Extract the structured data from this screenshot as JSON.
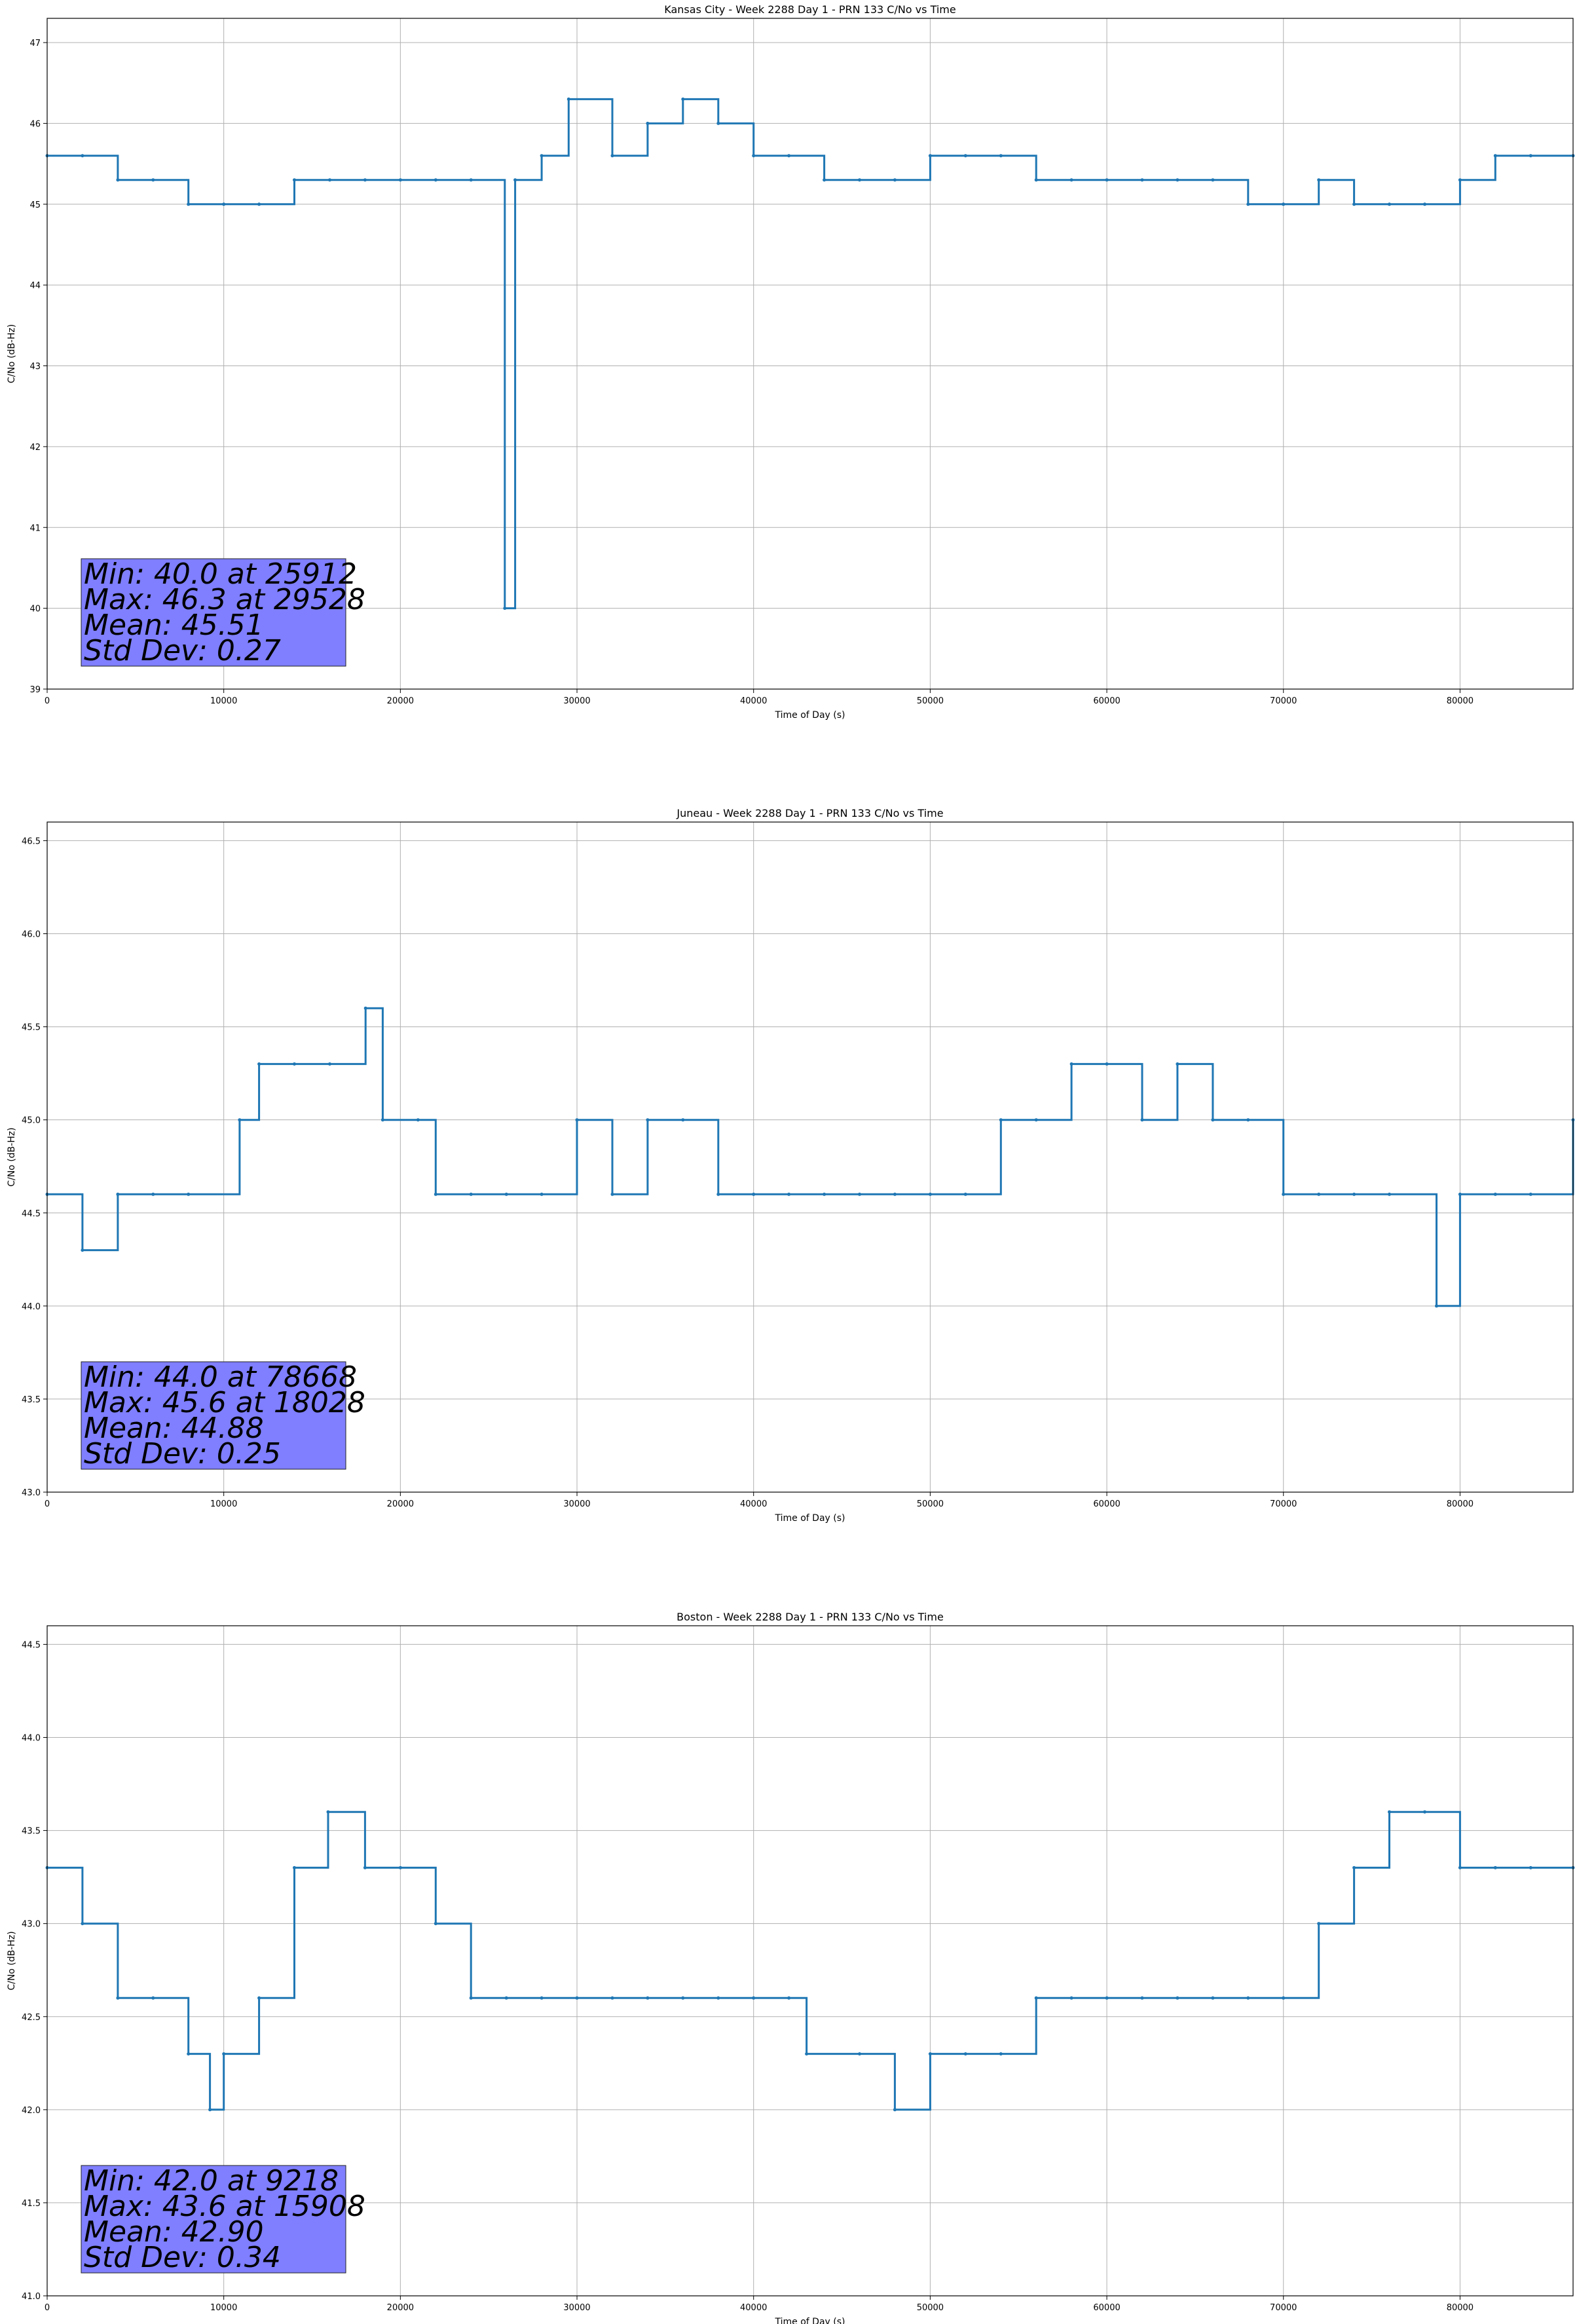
{
  "chart_data": [
    {
      "type": "line",
      "title": "Kansas City - Week 2288 Day 1 - PRN 133 C/No vs Time",
      "xlabel": "Time of Day (s)",
      "ylabel": "C/No (dB-Hz)",
      "xlim": [
        0,
        86400
      ],
      "ylim": [
        39,
        47.3
      ],
      "xticks": [
        0,
        10000,
        20000,
        30000,
        40000,
        50000,
        60000,
        70000,
        80000
      ],
      "yticks": [
        39,
        40,
        41,
        42,
        43,
        44,
        45,
        46,
        47
      ],
      "ytick_labels": [
        "39",
        "40",
        "41",
        "42",
        "43",
        "44",
        "45",
        "46",
        "47"
      ],
      "grid": true,
      "color": "#1f77b4",
      "series": [
        {
          "x": [
            0,
            2000,
            4000,
            6000,
            8000,
            10000,
            12000,
            14000,
            16000,
            18000,
            20000,
            22000,
            24000,
            25912,
            26500,
            28000,
            29528,
            32000,
            34000,
            36000,
            38000,
            40000,
            42000,
            44000,
            46000,
            48000,
            50000,
            52000,
            54000,
            56000,
            58000,
            60000,
            62000,
            64000,
            66000,
            68000,
            70000,
            72000,
            74000,
            76000,
            78000,
            80000,
            82000,
            84000,
            86400
          ],
          "y": [
            45.6,
            45.6,
            45.3,
            45.3,
            45.0,
            45.0,
            45.0,
            45.3,
            45.3,
            45.3,
            45.3,
            45.3,
            45.3,
            40.0,
            45.3,
            45.6,
            46.3,
            45.6,
            46.0,
            46.3,
            46.0,
            45.6,
            45.6,
            45.3,
            45.3,
            45.3,
            45.6,
            45.6,
            45.6,
            45.3,
            45.3,
            45.3,
            45.3,
            45.3,
            45.3,
            45.0,
            45.0,
            45.3,
            45.0,
            45.0,
            45.0,
            45.3,
            45.6,
            45.6,
            45.6
          ]
        }
      ],
      "stats": [
        "Min: 40.0 at 25912",
        "Max: 46.3 at 29528",
        "Mean: 45.51",
        "Std Dev: 0.27"
      ]
    },
    {
      "type": "line",
      "title": "Juneau - Week 2288 Day 1 - PRN 133 C/No vs Time",
      "xlabel": "Time of Day (s)",
      "ylabel": "C/No (dB-Hz)",
      "xlim": [
        0,
        86400
      ],
      "ylim": [
        43.0,
        46.6
      ],
      "xticks": [
        0,
        10000,
        20000,
        30000,
        40000,
        50000,
        60000,
        70000,
        80000
      ],
      "yticks": [
        43.0,
        43.5,
        44.0,
        44.5,
        45.0,
        45.5,
        46.0,
        46.5
      ],
      "ytick_labels": [
        "43.0",
        "43.5",
        "44.0",
        "44.5",
        "45.0",
        "45.5",
        "46.0",
        "46.5"
      ],
      "grid": true,
      "color": "#1f77b4",
      "series": [
        {
          "x": [
            0,
            2000,
            4000,
            6000,
            8000,
            10900,
            12000,
            14000,
            16000,
            18028,
            19000,
            21000,
            22000,
            24000,
            26000,
            28000,
            30000,
            32000,
            34000,
            36000,
            38000,
            40000,
            42000,
            44000,
            46000,
            48000,
            50000,
            52000,
            54000,
            56000,
            58000,
            60000,
            62000,
            64000,
            66000,
            68000,
            70000,
            72000,
            74000,
            76000,
            78668,
            80000,
            82000,
            84000,
            86400
          ],
          "y": [
            44.6,
            44.3,
            44.6,
            44.6,
            44.6,
            45.0,
            45.3,
            45.3,
            45.3,
            45.6,
            45.0,
            45.0,
            44.6,
            44.6,
            44.6,
            44.6,
            45.0,
            44.6,
            45.0,
            45.0,
            44.6,
            44.6,
            44.6,
            44.6,
            44.6,
            44.6,
            44.6,
            44.6,
            45.0,
            45.0,
            45.3,
            45.3,
            45.0,
            45.3,
            45.0,
            45.0,
            44.6,
            44.6,
            44.6,
            44.6,
            44.0,
            44.6,
            44.6,
            44.6,
            45.0
          ]
        }
      ],
      "stats": [
        "Min: 44.0 at 78668",
        "Max: 45.6 at 18028",
        "Mean: 44.88",
        "Std Dev: 0.25"
      ]
    },
    {
      "type": "line",
      "title": "Boston - Week 2288 Day 1 - PRN 133 C/No vs Time",
      "xlabel": "Time of Day (s)",
      "ylabel": "C/No (dB-Hz)",
      "xlim": [
        0,
        86400
      ],
      "ylim": [
        41.0,
        44.6
      ],
      "xticks": [
        0,
        10000,
        20000,
        30000,
        40000,
        50000,
        60000,
        70000,
        80000
      ],
      "yticks": [
        41.0,
        41.5,
        42.0,
        42.5,
        43.0,
        43.5,
        44.0,
        44.5
      ],
      "ytick_labels": [
        "41.0",
        "41.5",
        "42.0",
        "42.5",
        "43.0",
        "43.5",
        "44.0",
        "44.5"
      ],
      "grid": true,
      "color": "#1f77b4",
      "series": [
        {
          "x": [
            0,
            2000,
            4000,
            6000,
            8000,
            9218,
            10000,
            12000,
            14000,
            15908,
            18000,
            20000,
            22000,
            24000,
            26000,
            28000,
            30000,
            32000,
            34000,
            36000,
            38000,
            40000,
            42000,
            43000,
            46000,
            48000,
            50000,
            52000,
            54000,
            56000,
            58000,
            60000,
            62000,
            64000,
            66000,
            68000,
            70000,
            72000,
            74000,
            76000,
            78000,
            80000,
            82000,
            84000,
            86400
          ],
          "y": [
            43.3,
            43.0,
            42.6,
            42.6,
            42.3,
            42.0,
            42.3,
            42.6,
            43.3,
            43.6,
            43.3,
            43.3,
            43.0,
            42.6,
            42.6,
            42.6,
            42.6,
            42.6,
            42.6,
            42.6,
            42.6,
            42.6,
            42.6,
            42.3,
            42.3,
            42.0,
            42.3,
            42.3,
            42.3,
            42.6,
            42.6,
            42.6,
            42.6,
            42.6,
            42.6,
            42.6,
            42.6,
            43.0,
            43.3,
            43.6,
            43.6,
            43.3,
            43.3,
            43.3,
            43.3
          ]
        }
      ],
      "stats": [
        "Min: 42.0 at 9218",
        "Max: 43.6 at 15908",
        "Mean: 42.90",
        "Std Dev: 0.34"
      ]
    }
  ]
}
